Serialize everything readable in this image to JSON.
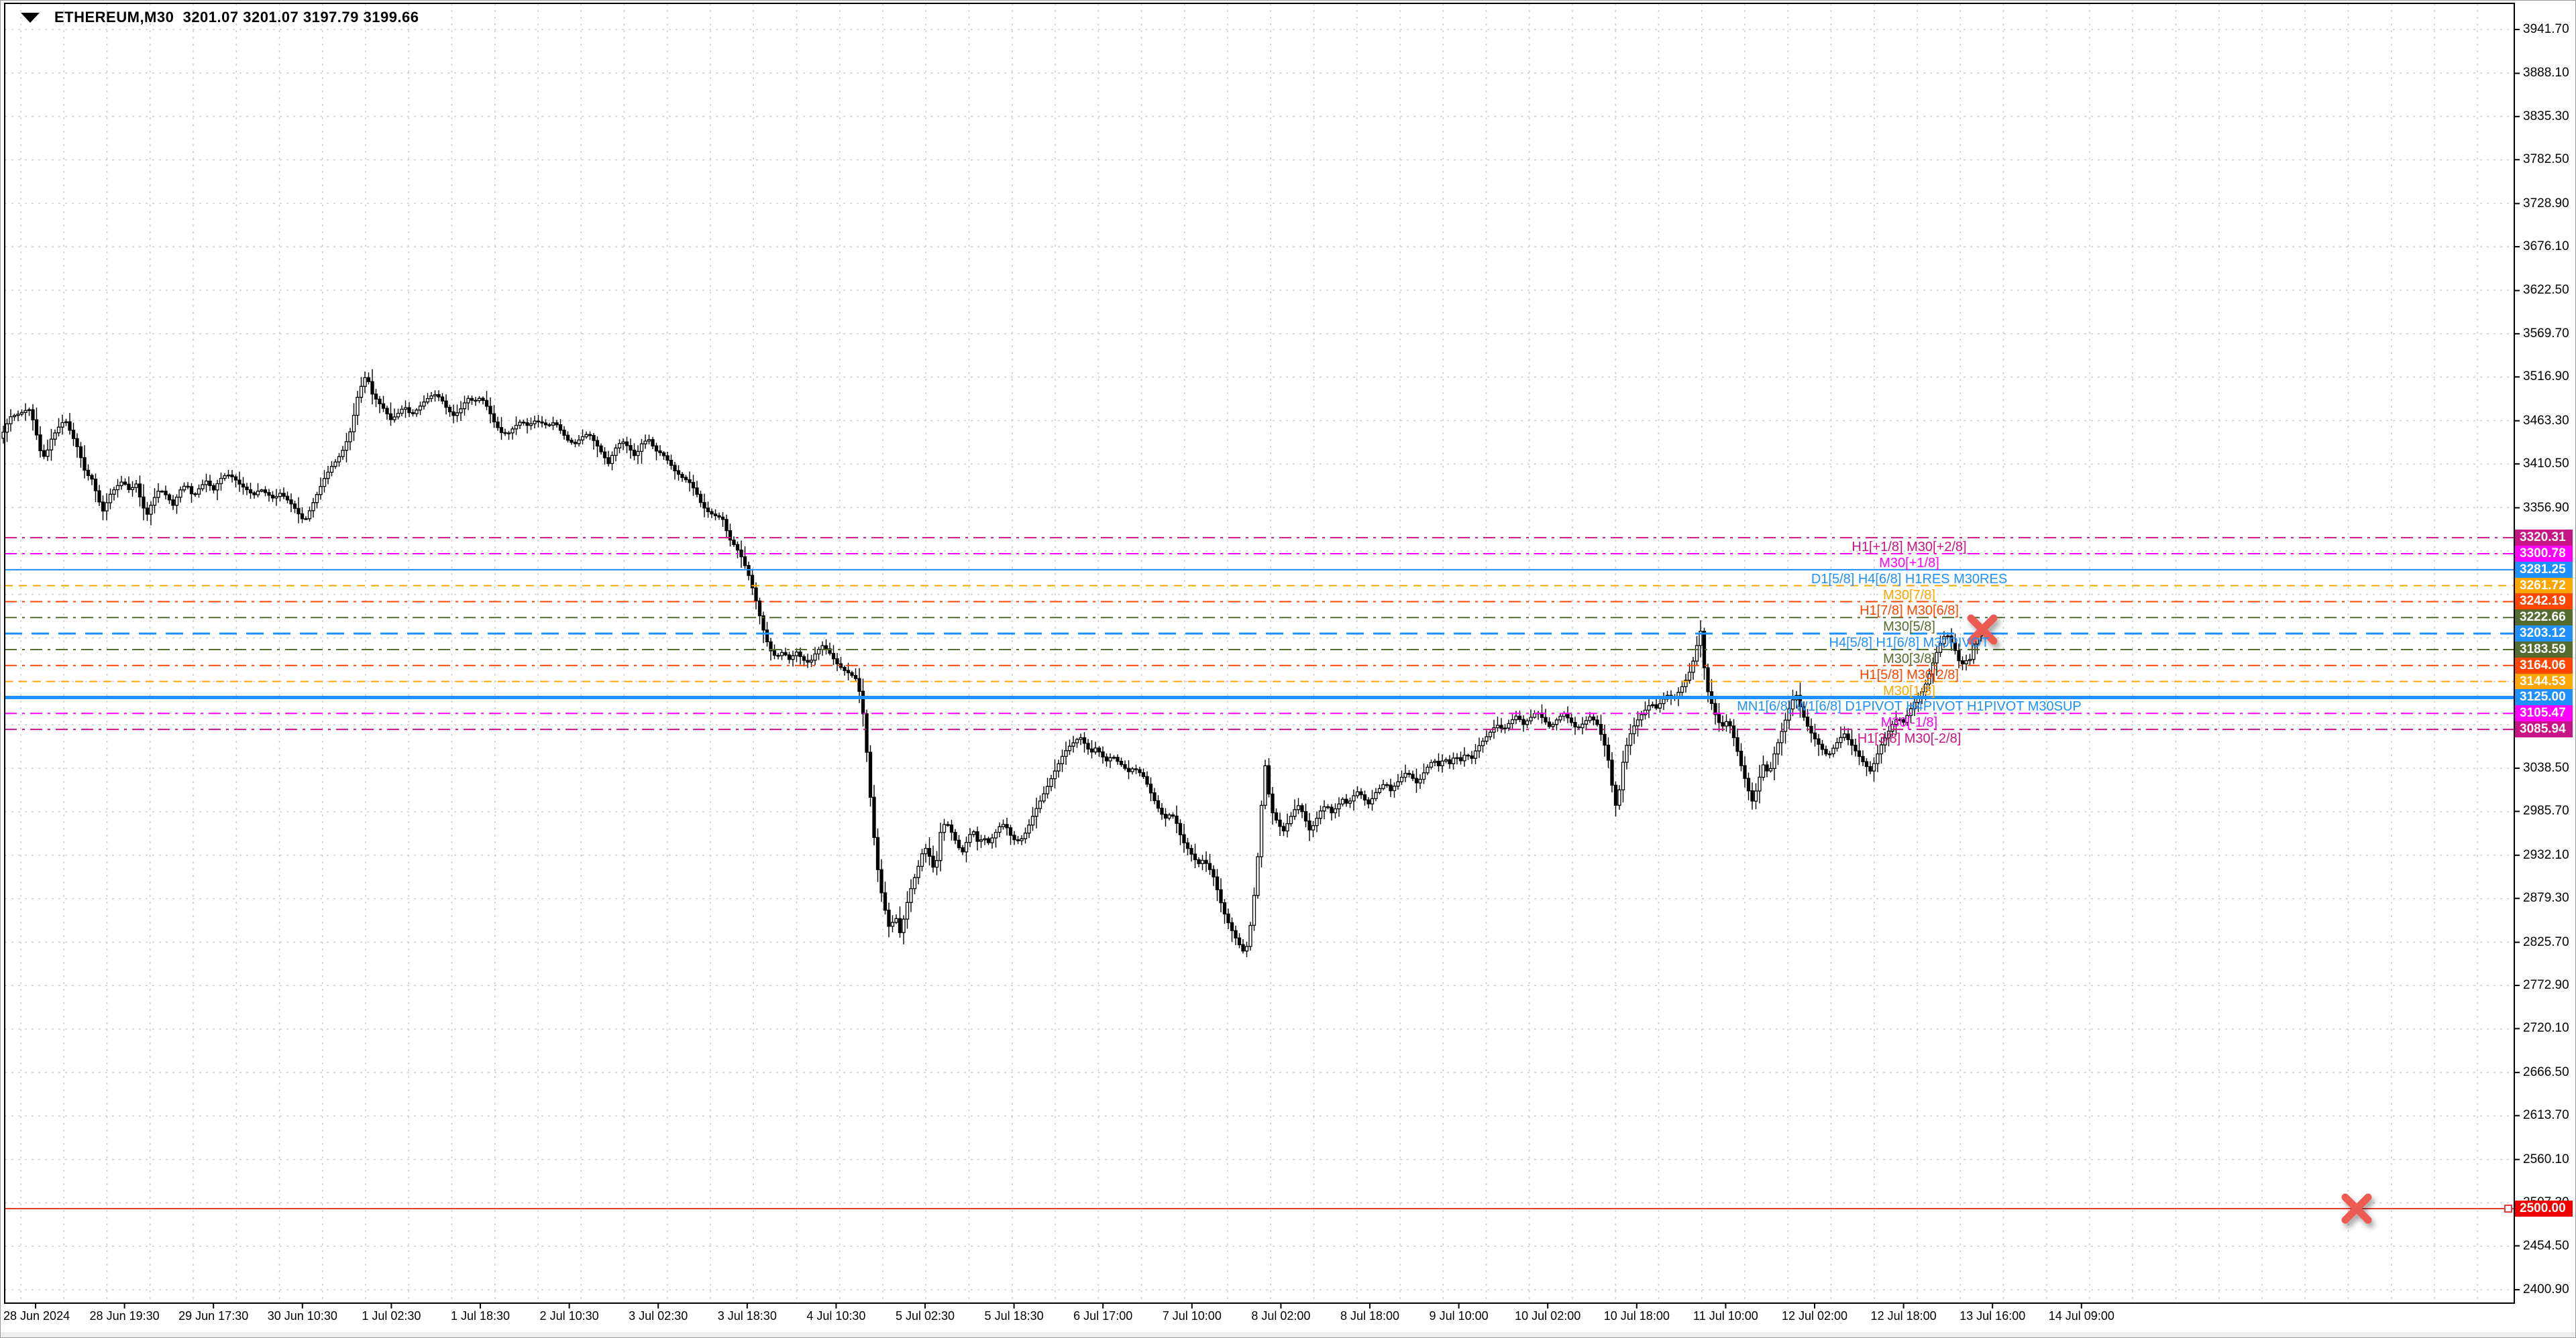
{
  "window": {
    "symbol": "ETHEREUM,M30",
    "quotes": "3201.07 3201.07 3197.79 3199.66",
    "title_full": "ETHEREUM,M30  3201.07 3201.07 3197.79 3199.66"
  },
  "price_axis": {
    "labels": [
      "3941.70",
      "3888.10",
      "3835.30",
      "3782.50",
      "3728.90",
      "3676.10",
      "3622.50",
      "3569.70",
      "3516.90",
      "3463.30",
      "3410.50",
      "3356.90",
      "3038.50",
      "2985.70",
      "2932.10",
      "2879.30",
      "2825.70",
      "2772.90",
      "2720.10",
      "2666.50",
      "2613.70",
      "2560.10",
      "2507.30",
      "2454.50",
      "2400.90"
    ]
  },
  "time_axis": {
    "labels": [
      "28 Jun 2024",
      "28 Jun 19:30",
      "29 Jun 17:30",
      "30 Jun 10:30",
      "1 Jul 02:30",
      "1 Jul 18:30",
      "2 Jul 10:30",
      "3 Jul 02:30",
      "3 Jul 18:30",
      "4 Jul 10:30",
      "5 Jul 02:30",
      "5 Jul 18:30",
      "6 Jul 17:00",
      "7 Jul 10:00",
      "8 Jul 02:00",
      "8 Jul 18:00",
      "9 Jul 10:00",
      "10 Jul 02:00",
      "10 Jul 18:00",
      "11 Jul 10:00",
      "12 Jul 02:00",
      "12 Jul 18:00",
      "13 Jul 16:00",
      "14 Jul 09:00"
    ]
  },
  "levels": [
    {
      "price": 3320.31,
      "badge": "3320.31",
      "label": "H1[+1/8] M30[+2/8]",
      "color": "#C71585",
      "style": "dashdot",
      "width": 2
    },
    {
      "price": 3300.78,
      "badge": "3300.78",
      "label": "M30[+1/8]",
      "color": "#FF00FF",
      "style": "dashdot",
      "width": 2
    },
    {
      "price": 3281.25,
      "badge": "3281.25",
      "label": "D1[5/8] H4[6/8] H1RES M30RES",
      "color": "#1E90FF",
      "style": "solid",
      "width": 2
    },
    {
      "price": 3261.72,
      "badge": "3261.72",
      "label": "M30[7/8]",
      "color": "#FFA500",
      "style": "dash",
      "width": 2
    },
    {
      "price": 3242.19,
      "badge": "3242.19",
      "label": "H1[7/8] M30[6/8]",
      "color": "#FF4500",
      "style": "dashdot",
      "width": 2
    },
    {
      "price": 3222.66,
      "badge": "3222.66",
      "label": "M30[5/8]",
      "color": "#556B2F",
      "style": "dashdot",
      "width": 2
    },
    {
      "price": 3203.12,
      "badge": "3203.12",
      "label": "H4[5/8] H1[6/8] M30PIVOT",
      "color": "#1E90FF",
      "style": "longdash",
      "width": 3
    },
    {
      "price": 3183.59,
      "badge": "3183.59",
      "label": "M30[3/8]",
      "color": "#556B2F",
      "style": "dashdot",
      "width": 2
    },
    {
      "price": 3164.06,
      "badge": "3164.06",
      "label": "H1[5/8] M30[2/8]",
      "color": "#FF4500",
      "style": "dashdot",
      "width": 2
    },
    {
      "price": 3144.53,
      "badge": "3144.53",
      "label": "M30[1/8]",
      "color": "#FFA500",
      "style": "dash",
      "width": 2
    },
    {
      "price": 3125.0,
      "badge": "3125.00",
      "label": "MN1[6/8] W1[6/8] D1PIVOT H4PIVOT H1PIVOT M30SUP",
      "color": "#1E90FF",
      "style": "solid",
      "width": 5
    },
    {
      "price": 3105.47,
      "badge": "3105.47",
      "label": "M30[-1/8]",
      "color": "#FF00FF",
      "style": "dashdot",
      "width": 2
    },
    {
      "price": 3085.94,
      "badge": "3085.94",
      "label": "H1[3/8] M30[-2/8]",
      "color": "#C71585",
      "style": "dashdot",
      "width": 2
    },
    {
      "price": 2500.0,
      "badge": "2500.00",
      "label": "",
      "color": "#E53935",
      "style": "solid",
      "width": 2,
      "badge_bg": "#F10000",
      "selected": true
    }
  ],
  "markers": [
    {
      "name": "cross-marker-pivot",
      "x": 2954,
      "price": 3208,
      "color": "#EC5B53",
      "size": 34
    },
    {
      "name": "cross-marker-2500",
      "x": 3512,
      "price": 2500,
      "color": "#EC5B53",
      "size": 34
    }
  ],
  "chart_data": {
    "type": "candlestick",
    "symbol": "ETHEREUM",
    "timeframe": "M30",
    "title": "ETHEREUM,M30  3201.07 3201.07 3197.79 3199.66",
    "last_bar": {
      "open": 3201.07,
      "high": 3201.07,
      "low": 3197.79,
      "close": 3199.66
    },
    "ylim": [
      2400.9,
      3941.7
    ],
    "x_range": [
      "28 Jun 2024",
      "14 Jul 09:00"
    ],
    "grid": true,
    "note": "approx_path is [x_px, price] anchors of the visible price trajectory; candles are synthesized along it",
    "approx_path": [
      [
        0,
        3442
      ],
      [
        14,
        3468
      ],
      [
        28,
        3472
      ],
      [
        42,
        3478
      ],
      [
        50,
        3460
      ],
      [
        58,
        3428
      ],
      [
        66,
        3418
      ],
      [
        76,
        3442
      ],
      [
        86,
        3455
      ],
      [
        96,
        3465
      ],
      [
        106,
        3446
      ],
      [
        116,
        3428
      ],
      [
        126,
        3400
      ],
      [
        136,
        3392
      ],
      [
        146,
        3366
      ],
      [
        153,
        3352
      ],
      [
        162,
        3372
      ],
      [
        172,
        3382
      ],
      [
        182,
        3390
      ],
      [
        192,
        3378
      ],
      [
        202,
        3386
      ],
      [
        211,
        3360
      ],
      [
        218,
        3348
      ],
      [
        227,
        3366
      ],
      [
        237,
        3380
      ],
      [
        247,
        3372
      ],
      [
        257,
        3360
      ],
      [
        267,
        3378
      ],
      [
        277,
        3386
      ],
      [
        287,
        3370
      ],
      [
        297,
        3382
      ],
      [
        307,
        3390
      ],
      [
        317,
        3378
      ],
      [
        327,
        3392
      ],
      [
        337,
        3398
      ],
      [
        347,
        3394
      ],
      [
        357,
        3385
      ],
      [
        367,
        3379
      ],
      [
        377,
        3372
      ],
      [
        387,
        3380
      ],
      [
        397,
        3374
      ],
      [
        407,
        3368
      ],
      [
        417,
        3375
      ],
      [
        427,
        3367
      ],
      [
        437,
        3358
      ],
      [
        447,
        3346
      ],
      [
        453,
        3340
      ],
      [
        462,
        3356
      ],
      [
        472,
        3374
      ],
      [
        482,
        3392
      ],
      [
        492,
        3406
      ],
      [
        502,
        3416
      ],
      [
        512,
        3430
      ],
      [
        522,
        3452
      ],
      [
        532,
        3492
      ],
      [
        541,
        3514
      ],
      [
        546,
        3519
      ],
      [
        553,
        3497
      ],
      [
        562,
        3487
      ],
      [
        572,
        3477
      ],
      [
        582,
        3464
      ],
      [
        592,
        3472
      ],
      [
        602,
        3481
      ],
      [
        612,
        3470
      ],
      [
        622,
        3478
      ],
      [
        634,
        3489
      ],
      [
        646,
        3496
      ],
      [
        656,
        3491
      ],
      [
        666,
        3477
      ],
      [
        676,
        3469
      ],
      [
        686,
        3478
      ],
      [
        696,
        3491
      ],
      [
        706,
        3487
      ],
      [
        716,
        3492
      ],
      [
        726,
        3479
      ],
      [
        736,
        3461
      ],
      [
        746,
        3449
      ],
      [
        756,
        3447
      ],
      [
        766,
        3456
      ],
      [
        776,
        3463
      ],
      [
        786,
        3457
      ],
      [
        796,
        3463
      ],
      [
        806,
        3461
      ],
      [
        816,
        3457
      ],
      [
        826,
        3462
      ],
      [
        836,
        3450
      ],
      [
        846,
        3439
      ],
      [
        856,
        3435
      ],
      [
        866,
        3443
      ],
      [
        876,
        3448
      ],
      [
        886,
        3437
      ],
      [
        896,
        3424
      ],
      [
        906,
        3411
      ],
      [
        916,
        3429
      ],
      [
        926,
        3439
      ],
      [
        936,
        3431
      ],
      [
        946,
        3419
      ],
      [
        956,
        3436
      ],
      [
        966,
        3441
      ],
      [
        976,
        3427
      ],
      [
        986,
        3423
      ],
      [
        996,
        3413
      ],
      [
        1006,
        3401
      ],
      [
        1016,
        3394
      ],
      [
        1026,
        3389
      ],
      [
        1036,
        3377
      ],
      [
        1046,
        3359
      ],
      [
        1056,
        3351
      ],
      [
        1066,
        3347
      ],
      [
        1076,
        3344
      ],
      [
        1086,
        3319
      ],
      [
        1096,
        3309
      ],
      [
        1106,
        3294
      ],
      [
        1116,
        3272
      ],
      [
        1126,
        3243
      ],
      [
        1136,
        3210
      ],
      [
        1146,
        3184
      ],
      [
        1156,
        3174
      ],
      [
        1166,
        3181
      ],
      [
        1176,
        3171
      ],
      [
        1186,
        3181
      ],
      [
        1196,
        3171
      ],
      [
        1206,
        3167
      ],
      [
        1216,
        3181
      ],
      [
        1226,
        3189
      ],
      [
        1236,
        3179
      ],
      [
        1246,
        3167
      ],
      [
        1256,
        3159
      ],
      [
        1266,
        3154
      ],
      [
        1276,
        3147
      ],
      [
        1284,
        3118
      ],
      [
        1291,
        3058
      ],
      [
        1298,
        2988
      ],
      [
        1305,
        2928
      ],
      [
        1312,
        2890
      ],
      [
        1319,
        2863
      ],
      [
        1326,
        2838
      ],
      [
        1333,
        2862
      ],
      [
        1340,
        2836
      ],
      [
        1347,
        2857
      ],
      [
        1354,
        2884
      ],
      [
        1361,
        2901
      ],
      [
        1369,
        2921
      ],
      [
        1377,
        2944
      ],
      [
        1385,
        2930
      ],
      [
        1393,
        2910
      ],
      [
        1401,
        2960
      ],
      [
        1409,
        2974
      ],
      [
        1417,
        2961
      ],
      [
        1425,
        2947
      ],
      [
        1433,
        2934
      ],
      [
        1441,
        2951
      ],
      [
        1449,
        2964
      ],
      [
        1457,
        2947
      ],
      [
        1465,
        2954
      ],
      [
        1473,
        2947
      ],
      [
        1481,
        2957
      ],
      [
        1489,
        2967
      ],
      [
        1497,
        2971
      ],
      [
        1505,
        2957
      ],
      [
        1513,
        2949
      ],
      [
        1521,
        2951
      ],
      [
        1529,
        2961
      ],
      [
        1537,
        2977
      ],
      [
        1545,
        2991
      ],
      [
        1553,
        3004
      ],
      [
        1561,
        3017
      ],
      [
        1569,
        3031
      ],
      [
        1577,
        3044
      ],
      [
        1585,
        3057
      ],
      [
        1593,
        3065
      ],
      [
        1601,
        3071
      ],
      [
        1609,
        3077
      ],
      [
        1617,
        3067
      ],
      [
        1625,
        3057
      ],
      [
        1633,
        3064
      ],
      [
        1641,
        3054
      ],
      [
        1649,
        3047
      ],
      [
        1657,
        3054
      ],
      [
        1665,
        3047
      ],
      [
        1673,
        3041
      ],
      [
        1681,
        3034
      ],
      [
        1689,
        3039
      ],
      [
        1697,
        3034
      ],
      [
        1705,
        3027
      ],
      [
        1713,
        3011
      ],
      [
        1721,
        2997
      ],
      [
        1729,
        2984
      ],
      [
        1737,
        2977
      ],
      [
        1745,
        2984
      ],
      [
        1753,
        2971
      ],
      [
        1761,
        2951
      ],
      [
        1769,
        2941
      ],
      [
        1777,
        2931
      ],
      [
        1785,
        2921
      ],
      [
        1793,
        2927
      ],
      [
        1801,
        2917
      ],
      [
        1809,
        2904
      ],
      [
        1817,
        2879
      ],
      [
        1825,
        2859
      ],
      [
        1833,
        2844
      ],
      [
        1841,
        2831
      ],
      [
        1849,
        2819
      ],
      [
        1855,
        2811
      ],
      [
        1861,
        2834
      ],
      [
        1867,
        2871
      ],
      [
        1873,
        2919
      ],
      [
        1879,
        2987
      ],
      [
        1884,
        3048
      ],
      [
        1890,
        3009
      ],
      [
        1896,
        2984
      ],
      [
        1904,
        2971
      ],
      [
        1912,
        2961
      ],
      [
        1920,
        2974
      ],
      [
        1928,
        2987
      ],
      [
        1936,
        2994
      ],
      [
        1944,
        2977
      ],
      [
        1952,
        2961
      ],
      [
        1960,
        2974
      ],
      [
        1968,
        2987
      ],
      [
        1976,
        2994
      ],
      [
        1984,
        2984
      ],
      [
        1992,
        2991
      ],
      [
        2000,
        3001
      ],
      [
        2008,
        2994
      ],
      [
        2016,
        3004
      ],
      [
        2024,
        3011
      ],
      [
        2032,
        3001
      ],
      [
        2040,
        2994
      ],
      [
        2048,
        3007
      ],
      [
        2056,
        3014
      ],
      [
        2064,
        3021
      ],
      [
        2072,
        3011
      ],
      [
        2080,
        3019
      ],
      [
        2088,
        3027
      ],
      [
        2096,
        3034
      ],
      [
        2104,
        3027
      ],
      [
        2112,
        3019
      ],
      [
        2120,
        3031
      ],
      [
        2128,
        3041
      ],
      [
        2136,
        3049
      ],
      [
        2144,
        3041
      ],
      [
        2152,
        3051
      ],
      [
        2160,
        3044
      ],
      [
        2168,
        3054
      ],
      [
        2176,
        3047
      ],
      [
        2184,
        3057
      ],
      [
        2192,
        3049
      ],
      [
        2200,
        3062
      ],
      [
        2210,
        3072
      ],
      [
        2220,
        3082
      ],
      [
        2230,
        3092
      ],
      [
        2240,
        3085
      ],
      [
        2250,
        3095
      ],
      [
        2260,
        3103
      ],
      [
        2270,
        3092
      ],
      [
        2280,
        3100
      ],
      [
        2290,
        3108
      ],
      [
        2300,
        3098
      ],
      [
        2310,
        3088
      ],
      [
        2320,
        3098
      ],
      [
        2330,
        3106
      ],
      [
        2340,
        3096
      ],
      [
        2350,
        3086
      ],
      [
        2360,
        3094
      ],
      [
        2370,
        3102
      ],
      [
        2380,
        3092
      ],
      [
        2390,
        3070
      ],
      [
        2399,
        3040
      ],
      [
        2406,
        2988
      ],
      [
        2413,
        3012
      ],
      [
        2420,
        3055
      ],
      [
        2428,
        3078
      ],
      [
        2436,
        3092
      ],
      [
        2444,
        3102
      ],
      [
        2452,
        3110
      ],
      [
        2460,
        3118
      ],
      [
        2468,
        3112
      ],
      [
        2476,
        3120
      ],
      [
        2484,
        3128
      ],
      [
        2492,
        3122
      ],
      [
        2500,
        3130
      ],
      [
        2508,
        3140
      ],
      [
        2516,
        3152
      ],
      [
        2524,
        3172
      ],
      [
        2530,
        3194
      ],
      [
        2534,
        3206
      ],
      [
        2539,
        3164
      ],
      [
        2545,
        3132
      ],
      [
        2555,
        3106
      ],
      [
        2565,
        3088
      ],
      [
        2575,
        3098
      ],
      [
        2585,
        3072
      ],
      [
        2595,
        3040
      ],
      [
        2605,
        3012
      ],
      [
        2612,
        2996
      ],
      [
        2620,
        3022
      ],
      [
        2628,
        3044
      ],
      [
        2636,
        3030
      ],
      [
        2644,
        3056
      ],
      [
        2652,
        3076
      ],
      [
        2660,
        3096
      ],
      [
        2668,
        3116
      ],
      [
        2676,
        3130
      ],
      [
        2684,
        3110
      ],
      [
        2692,
        3092
      ],
      [
        2700,
        3080
      ],
      [
        2708,
        3070
      ],
      [
        2716,
        3061
      ],
      [
        2724,
        3053
      ],
      [
        2732,
        3063
      ],
      [
        2740,
        3073
      ],
      [
        2748,
        3081
      ],
      [
        2756,
        3071
      ],
      [
        2764,
        3061
      ],
      [
        2772,
        3051
      ],
      [
        2780,
        3042
      ],
      [
        2788,
        3034
      ],
      [
        2796,
        3052
      ],
      [
        2804,
        3068
      ],
      [
        2812,
        3080
      ],
      [
        2820,
        3092
      ],
      [
        2828,
        3100
      ],
      [
        2836,
        3094
      ],
      [
        2844,
        3106
      ],
      [
        2852,
        3118
      ],
      [
        2860,
        3126
      ],
      [
        2868,
        3138
      ],
      [
        2876,
        3156
      ],
      [
        2884,
        3176
      ],
      [
        2892,
        3192
      ],
      [
        2900,
        3204
      ],
      [
        2908,
        3192
      ],
      [
        2916,
        3178
      ],
      [
        2922,
        3162
      ],
      [
        2928,
        3172
      ],
      [
        2934,
        3166
      ],
      [
        2940,
        3188
      ],
      [
        2946,
        3202
      ],
      [
        2952,
        3200
      ]
    ]
  }
}
